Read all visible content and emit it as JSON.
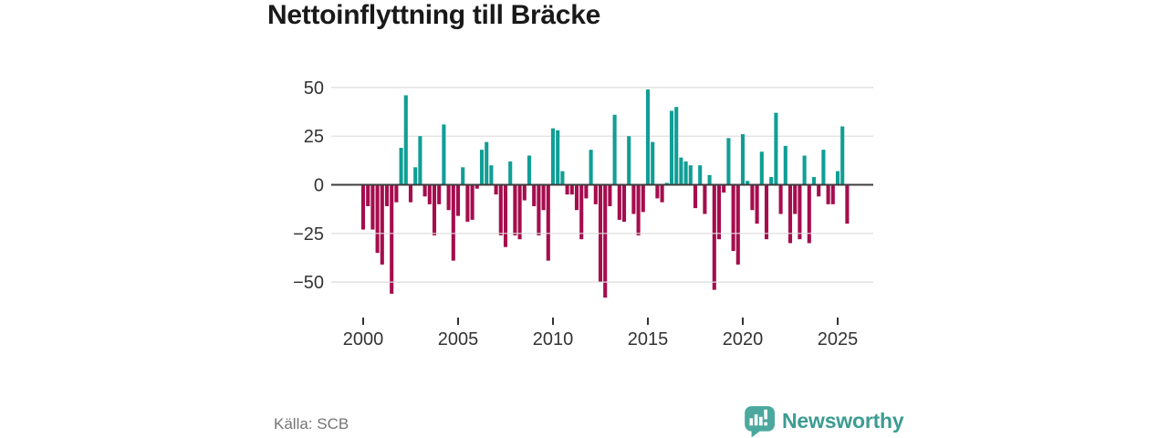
{
  "title": "Nettoinflyttning till Bräcke",
  "footer": {
    "source_label": "Källa: SCB",
    "brand": "Newsworthy"
  },
  "colors": {
    "positive": "#109E96",
    "negative": "#A50D4D",
    "grid": "#DBDBDB",
    "zero_line": "#3D3D3D",
    "axis_text": "#333333",
    "title_text": "#191919",
    "source_text": "#757575",
    "brand_text": "#3C9C92",
    "logo_bubble": "#4CA89E"
  },
  "chart_data": {
    "type": "bar",
    "title": "Nettoinflyttning till Bräcke",
    "frequency": "quarterly",
    "x_start_year": 2000,
    "x_start_quarter": 1,
    "values": [
      -23,
      -11,
      -23,
      -35,
      -41,
      -11,
      -56,
      -9,
      19,
      46,
      -9,
      9,
      25,
      -6,
      -10,
      -26,
      -10,
      31,
      -13,
      -39,
      -16,
      9,
      -19,
      -18,
      -2,
      18,
      22,
      10,
      -5,
      -26,
      -32,
      12,
      -26,
      -28,
      -8,
      15,
      -11,
      -26,
      -13,
      -39,
      29,
      28,
      7,
      -5,
      -5,
      -13,
      -28,
      -7,
      18,
      -10,
      -50,
      -58,
      -11,
      36,
      -18,
      -19,
      25,
      -15,
      -26,
      -14,
      49,
      22,
      -7,
      -9,
      1,
      38,
      40,
      14,
      12,
      10,
      -12,
      10,
      -15,
      5,
      -54,
      -28,
      -4,
      24,
      -34,
      -41,
      26,
      2,
      -13,
      -20,
      17,
      -28,
      4,
      37,
      -15,
      20,
      -30,
      -15,
      -28,
      15,
      -30,
      4,
      -6,
      18,
      -10,
      -10,
      7,
      30,
      -20
    ],
    "x_tick_years": [
      2000,
      2005,
      2010,
      2015,
      2020,
      2025
    ],
    "x_tick_labels": [
      "2000",
      "2005",
      "2010",
      "2015",
      "2020",
      "2025"
    ],
    "y_ticks": [
      50,
      25,
      0,
      -25,
      -50
    ],
    "y_tick_labels": [
      "50",
      "25",
      "0",
      "−25",
      "−50"
    ],
    "ylim": [
      -60,
      52
    ],
    "grid": "horizontal",
    "legend": "none"
  }
}
